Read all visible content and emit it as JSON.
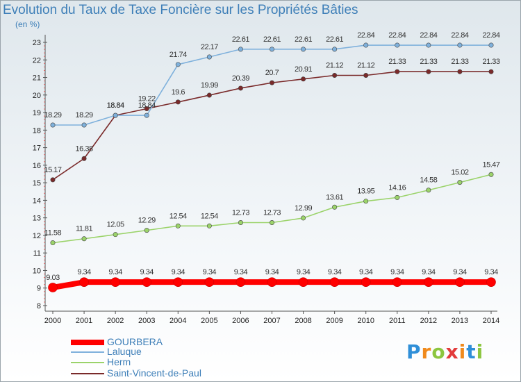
{
  "chart_data": {
    "type": "line",
    "title": "Evolution du Taux de Taxe Foncière sur les Propriétés Bâties",
    "subtitle": "(en %)",
    "x": [
      "2000",
      "2001",
      "2002",
      "2003",
      "2004",
      "2005",
      "2006",
      "2007",
      "2008",
      "2009",
      "2010",
      "2011",
      "2012",
      "2013",
      "2014"
    ],
    "ylim": [
      8,
      23
    ],
    "yticks": [
      8,
      9,
      10,
      11,
      12,
      13,
      14,
      15,
      16,
      17,
      18,
      19,
      20,
      21,
      22,
      23
    ],
    "grid": false,
    "legend_position": "bottom-left",
    "series": [
      {
        "name": "GOURBERA",
        "color": "#ff0000",
        "values": [
          9.03,
          9.34,
          9.34,
          9.34,
          9.34,
          9.34,
          9.34,
          9.34,
          9.34,
          9.34,
          9.34,
          9.34,
          9.34,
          9.34,
          9.34
        ],
        "labels": [
          "9.03",
          "9.34",
          "9.34",
          "9.34",
          "9.34",
          "9.34",
          "9.34",
          "9.34",
          "9.34",
          "9.34",
          "9.34",
          "9.34",
          "9.34",
          "9.34",
          "9.34"
        ]
      },
      {
        "name": "Laluque",
        "color": "#7fb1dc",
        "values": [
          18.29,
          18.29,
          18.84,
          18.84,
          21.74,
          22.17,
          22.61,
          22.61,
          22.61,
          22.61,
          22.84,
          22.84,
          22.84,
          22.84,
          22.84
        ],
        "labels": [
          "18.29",
          "18.29",
          "18.84",
          "18.84",
          "21.74",
          "22.17",
          "22.61",
          "22.61",
          "22.61",
          "22.61",
          "22.84",
          "22.84",
          "22.84",
          "22.84",
          "22.84"
        ]
      },
      {
        "name": "Herm",
        "color": "#9bd36a",
        "values": [
          11.58,
          11.81,
          12.05,
          12.29,
          12.54,
          12.54,
          12.73,
          12.73,
          12.99,
          13.61,
          13.95,
          14.16,
          14.58,
          15.02,
          15.47
        ],
        "labels": [
          "11.58",
          "11.81",
          "12.05",
          "12.29",
          "12.54",
          "12.54",
          "12.73",
          "12.73",
          "12.99",
          "13.61",
          "13.95",
          "14.16",
          "14.58",
          "15.02",
          "15.47"
        ]
      },
      {
        "name": "Saint-Vincent-de-Paul",
        "color": "#7a2a2a",
        "values": [
          15.17,
          16.38,
          18.84,
          19.22,
          19.6,
          19.99,
          20.39,
          20.7,
          20.91,
          21.12,
          21.12,
          21.33,
          21.33,
          21.33,
          21.33
        ],
        "labels": [
          "15.17",
          "16.38",
          "18.84",
          "19.22",
          "19.6",
          "19.99",
          "20.39",
          "20.7",
          "20.91",
          "21.12",
          "21.12",
          "21.33",
          "21.33",
          "21.33",
          "21.33"
        ]
      }
    ]
  },
  "logo_text": "Proxiti",
  "colors": {
    "title": "#3e7fb8",
    "axis": "#555555",
    "axis_tick_marks": "#e06060"
  }
}
